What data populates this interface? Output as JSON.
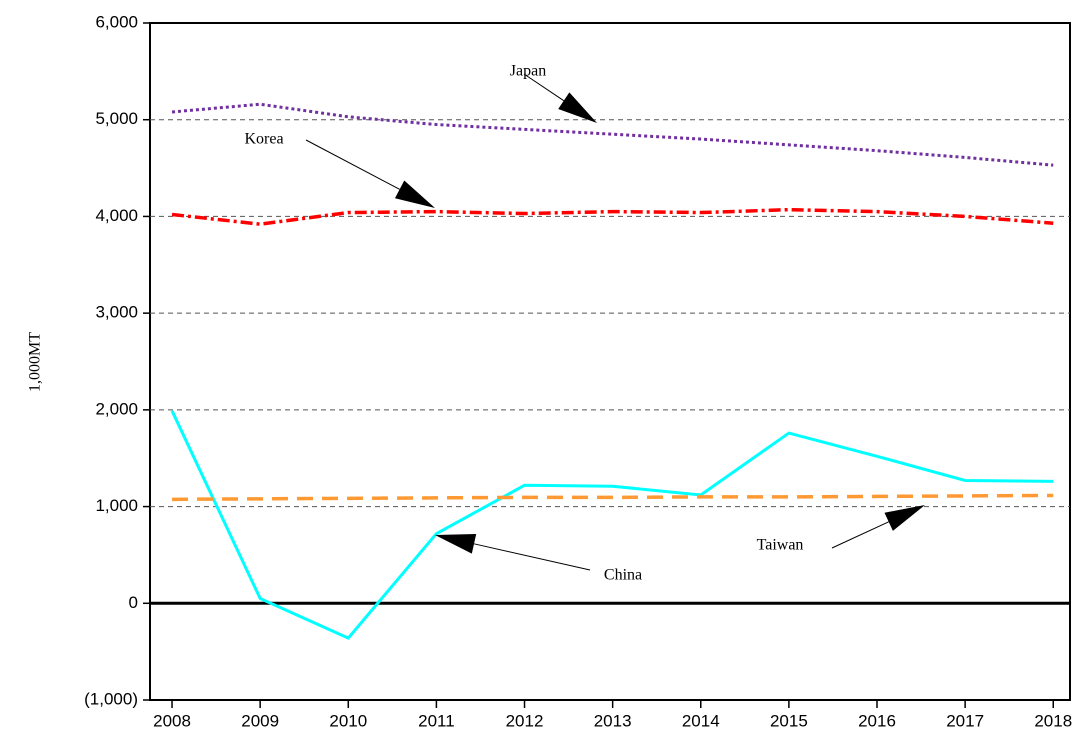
{
  "chart_data": {
    "type": "line",
    "y_label": "1,000MT",
    "x": [
      2008,
      2009,
      2010,
      2011,
      2012,
      2013,
      2014,
      2015,
      2016,
      2017,
      2018
    ],
    "xlim": [
      2007.75,
      2018.19
    ],
    "xticks": [
      2008,
      2009,
      2010,
      2011,
      2012,
      2013,
      2014,
      2015,
      2016,
      2017,
      2018
    ],
    "ylim": [
      -1000,
      6000
    ],
    "yticks": [
      {
        "value": -1000,
        "label": "(1,000)"
      },
      0,
      {
        "value": 1000,
        "label": "1,000"
      },
      {
        "value": 2000,
        "label": "2,000"
      },
      {
        "value": 3000,
        "label": "3,000"
      },
      {
        "value": 4000,
        "label": "4,000"
      },
      {
        "value": 5000,
        "label": "5,000"
      },
      {
        "value": 6000,
        "label": "6,000"
      }
    ],
    "grid": true,
    "series": [
      {
        "name": "Japan",
        "color": "#7030a0",
        "values": [
          5080,
          5160,
          5030,
          4950,
          4900,
          4850,
          4800,
          4740,
          4680,
          4610,
          4530
        ]
      },
      {
        "name": "Korea",
        "color": "#ff0000",
        "values": [
          4020,
          3920,
          4040,
          4050,
          4030,
          4050,
          4040,
          4070,
          4050,
          4000,
          3930
        ]
      },
      {
        "name": "China",
        "color": "#00ffff",
        "values": [
          1990,
          50,
          -360,
          720,
          1220,
          1210,
          1120,
          1760,
          1520,
          1270,
          1260
        ]
      },
      {
        "name": "Taiwan",
        "color": "#ff9933",
        "values": [
          1075,
          1080,
          1085,
          1090,
          1095,
          1095,
          1100,
          1100,
          1105,
          1110,
          1115
        ]
      }
    ]
  }
}
